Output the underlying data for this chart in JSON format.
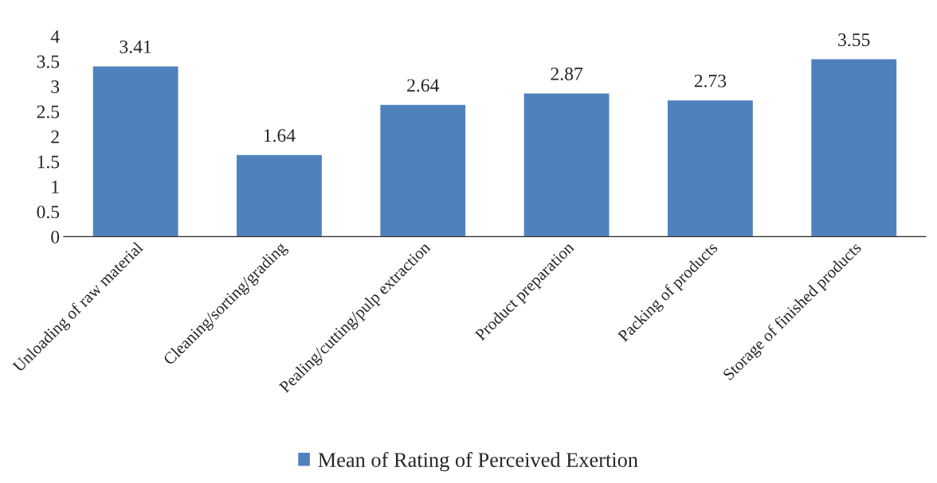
{
  "chart_data": {
    "type": "bar",
    "categories": [
      "Unloading of raw material",
      "Cleaning/sorting/grading",
      "Pealing/cutting/pulp extraction",
      "Product preparation",
      "Packing of products",
      "Storage of finished products"
    ],
    "series": [
      {
        "name": "Mean of Rating of Perceived Exertion",
        "color": "#4f81bd",
        "values": [
          3.41,
          1.64,
          2.64,
          2.87,
          2.73,
          3.55
        ]
      }
    ],
    "ylim": [
      0,
      4
    ],
    "yticks": [
      0,
      0.5,
      1,
      1.5,
      2,
      2.5,
      3,
      3.5,
      4
    ],
    "data_labels": true,
    "legend": "bottom",
    "grid": false
  }
}
